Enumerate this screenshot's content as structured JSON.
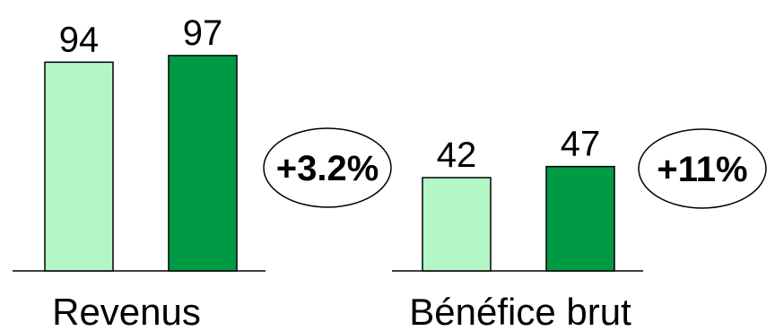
{
  "chart_data": [
    {
      "type": "bar",
      "categories": [
        "Revenus"
      ],
      "series": [
        {
          "values": [
            94
          ],
          "color": "#b3f7c6"
        },
        {
          "values": [
            97
          ],
          "color": "#009a44"
        }
      ],
      "data_labels": [
        "94",
        "97"
      ],
      "annotation": "+3.2%",
      "ylim": [
        0,
        100
      ]
    },
    {
      "type": "bar",
      "categories": [
        "Bénéfice brut"
      ],
      "series": [
        {
          "values": [
            42
          ],
          "color": "#b3f7c6"
        },
        {
          "values": [
            47
          ],
          "color": "#009a44"
        }
      ],
      "data_labels": [
        "42",
        "47"
      ],
      "annotation": "+11%",
      "ylim": [
        0,
        100
      ]
    }
  ]
}
